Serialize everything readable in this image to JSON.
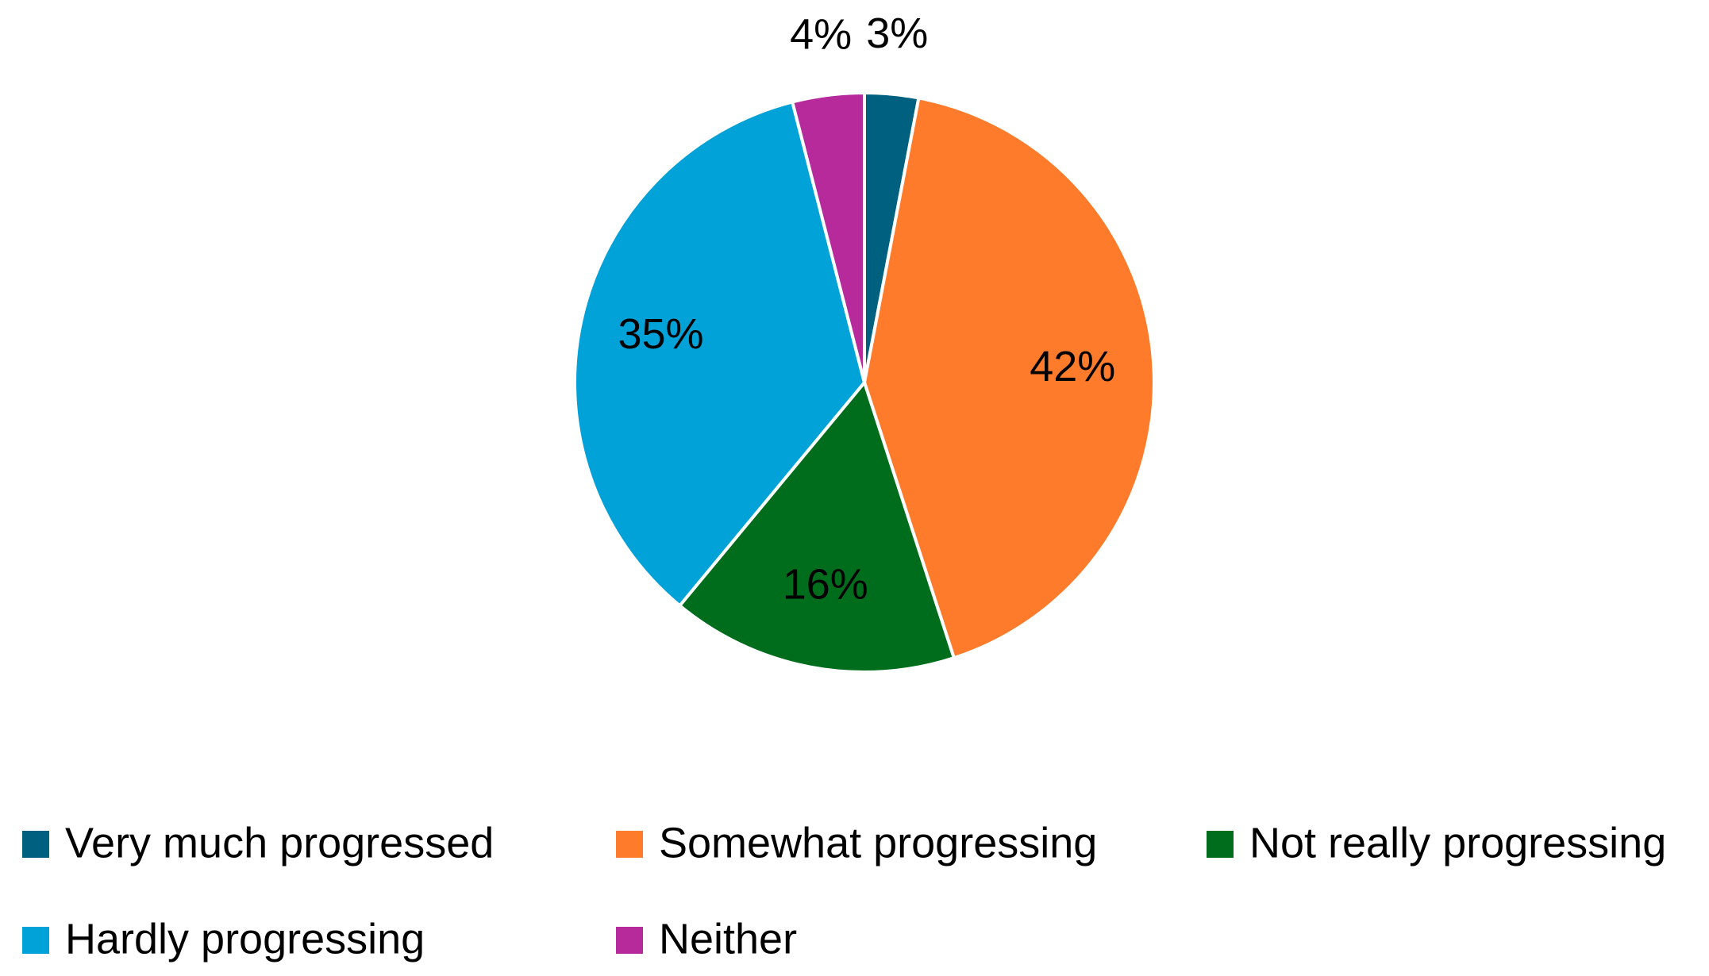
{
  "chart_data": {
    "type": "pie",
    "categories": [
      "Very much progressed",
      "Somewhat progressing",
      "Not really progressing",
      "Hardly progressing",
      "Neither"
    ],
    "values": [
      3,
      42,
      16,
      35,
      4
    ],
    "value_labels": [
      "3%",
      "42%",
      "16%",
      "35%",
      "4%"
    ],
    "colors": [
      "#00607f",
      "#ff7b2c",
      "#006d1c",
      "#00a2d8",
      "#b62a9c"
    ],
    "legend": "bottom"
  }
}
